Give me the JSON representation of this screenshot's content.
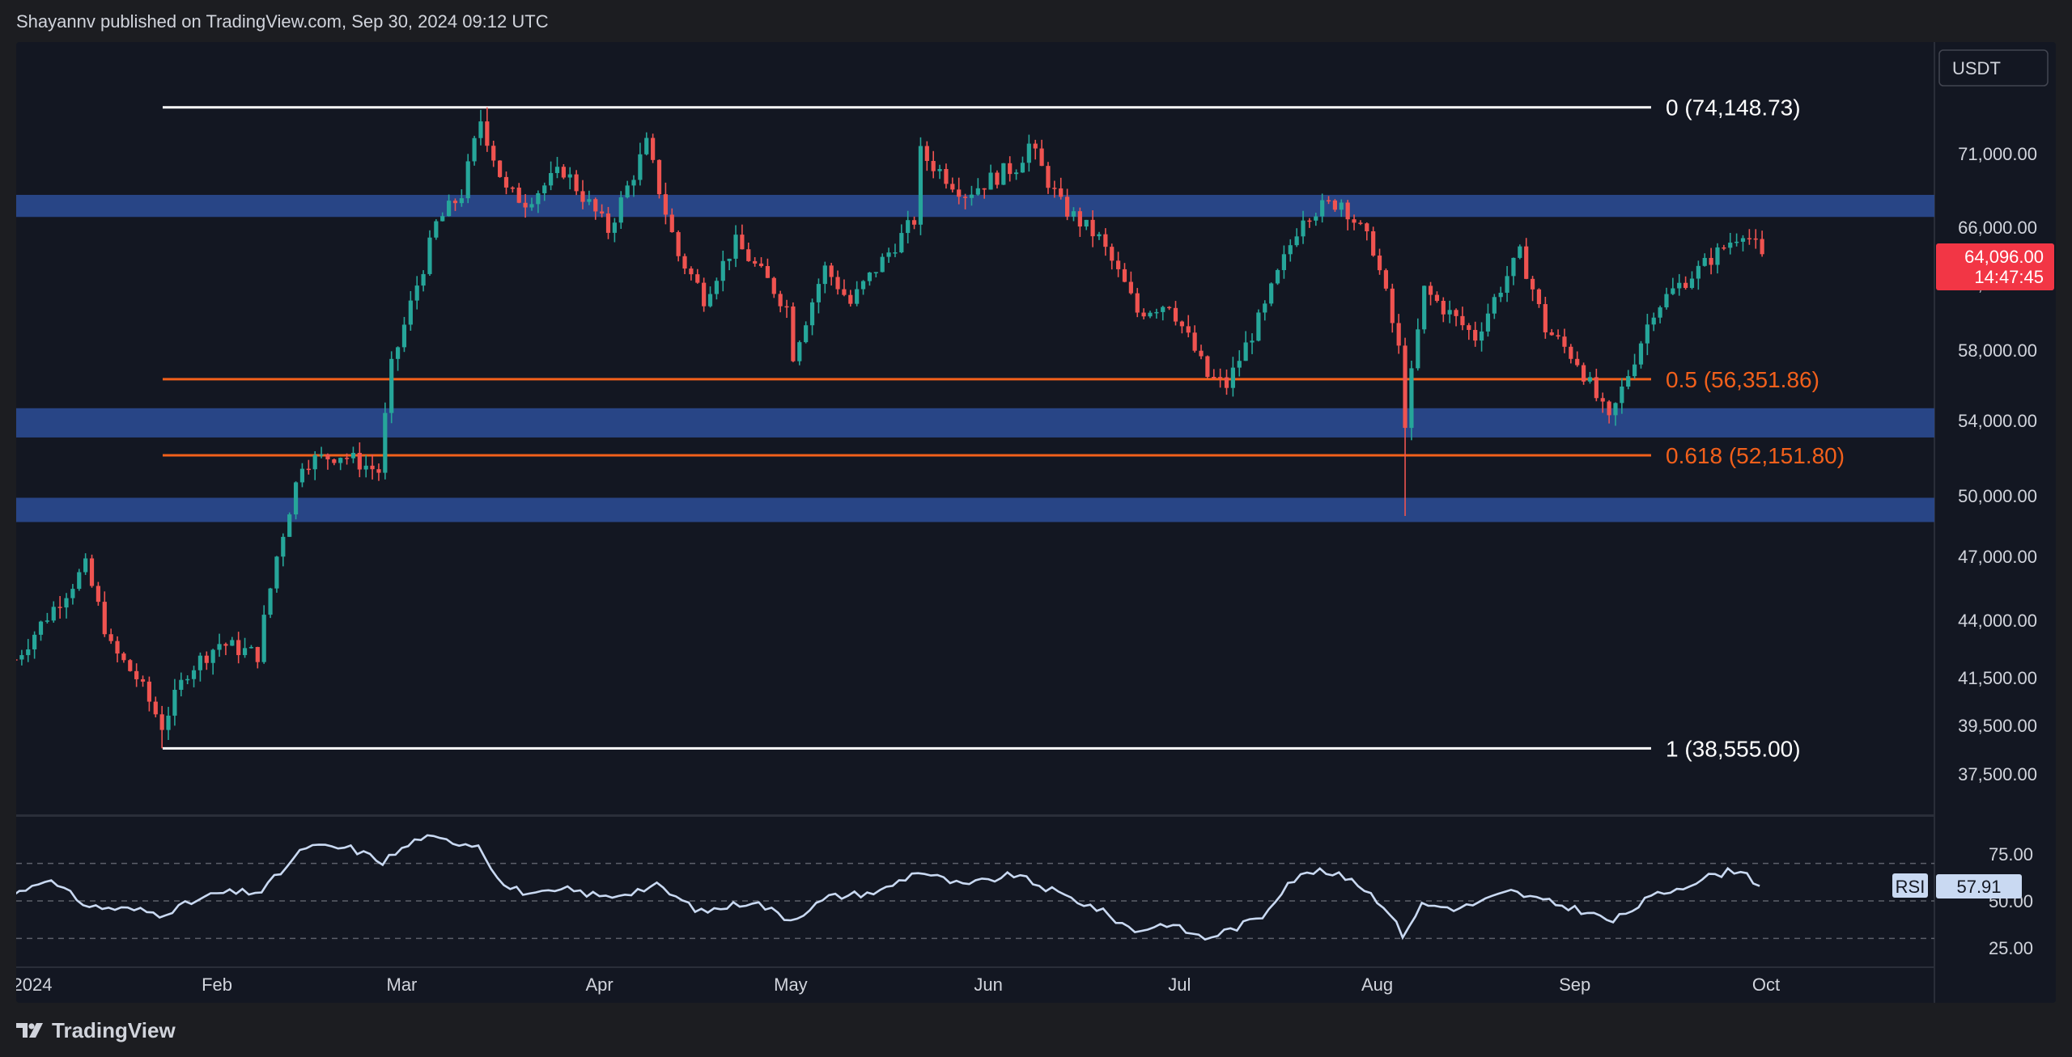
{
  "header": {
    "publisher_line": "Shayannv published on TradingView.com, Sep 30, 2024 09:12 UTC"
  },
  "footer": {
    "brand": "TradingView"
  },
  "toolbar": {
    "currency": "USDT"
  },
  "price_axis": {
    "ticks": [
      "71,000.00",
      "66,000.00",
      "62,000.00",
      "58,000.00",
      "54,000.00",
      "50,000.00",
      "47,000.00",
      "44,000.00",
      "41,500.00",
      "39,500.00",
      "37,500.00"
    ],
    "last_price": "64,096.00",
    "countdown": "14:47:45"
  },
  "time_axis": {
    "ticks": [
      "2024",
      "Feb",
      "Mar",
      "Apr",
      "May",
      "Jun",
      "Jul",
      "Aug",
      "Sep",
      "Oct"
    ]
  },
  "fib_levels": [
    {
      "label": "0 (74,148.73)",
      "price": 74148.73,
      "color": "#ffffff"
    },
    {
      "label": "0.5 (56,351.86)",
      "price": 56351.86,
      "color": "#f2601b"
    },
    {
      "label": "0.618 (52,151.80)",
      "price": 52151.8,
      "color": "#f2601b"
    },
    {
      "label": "1 (38,555.00)",
      "price": 38555.0,
      "color": "#ffffff"
    }
  ],
  "zones": [
    {
      "high": 68200,
      "low": 66700
    },
    {
      "high": 54700,
      "low": 53100
    },
    {
      "high": 49900,
      "low": 48700
    }
  ],
  "indicator": {
    "name": "RSI",
    "value": "57.91",
    "ticks": [
      "75.00",
      "50.00",
      "25.00"
    ],
    "upper": 70,
    "middle": 50,
    "lower": 30
  },
  "colors": {
    "up": "#26a69a",
    "down": "#ef5350",
    "zone": "#2a4a8f",
    "fib_white": "#ffffff",
    "fib_orange": "#f2601b",
    "rsi": "#c9d9f2",
    "badge_red": "#f23645"
  },
  "chart_data": {
    "type": "candlestick",
    "symbol_currency": "USDT",
    "interval": "daily",
    "x_range": [
      "2023-12-31",
      "2024-09-30"
    ],
    "y_range": [
      37000,
      75500
    ],
    "last": 64096.0,
    "rsi_last": 57.91,
    "key_points": [
      {
        "date": "2024-01-23",
        "price": 38555.0,
        "note": "swing low (fib 1)"
      },
      {
        "date": "2024-03-14",
        "price": 74148.73,
        "note": "swing high (fib 0)"
      },
      {
        "date": "2024-08-05",
        "price": 49000,
        "note": "wick low"
      },
      {
        "date": "2024-09-30",
        "price": 64096.0,
        "note": "last"
      }
    ],
    "close_path": [
      [
        "2023-12-31",
        42300
      ],
      [
        "2024-01-05",
        44200
      ],
      [
        "2024-01-11",
        46500
      ],
      [
        "2024-01-15",
        42800
      ],
      [
        "2024-01-19",
        41500
      ],
      [
        "2024-01-23",
        39500
      ],
      [
        "2024-01-27",
        41800
      ],
      [
        "2024-02-01",
        43000
      ],
      [
        "2024-02-07",
        42500
      ],
      [
        "2024-02-10",
        47000
      ],
      [
        "2024-02-14",
        51800
      ],
      [
        "2024-02-20",
        52200
      ],
      [
        "2024-02-26",
        51300
      ],
      [
        "2024-02-28",
        57000
      ],
      [
        "2024-03-04",
        63200
      ],
      [
        "2024-03-06",
        66200
      ],
      [
        "2024-03-10",
        68300
      ],
      [
        "2024-03-13",
        73300
      ],
      [
        "2024-03-17",
        68400
      ],
      [
        "2024-03-20",
        67800
      ],
      [
        "2024-03-26",
        69900
      ],
      [
        "2024-04-02",
        65800
      ],
      [
        "2024-04-08",
        71600
      ],
      [
        "2024-04-13",
        64000
      ],
      [
        "2024-04-17",
        61200
      ],
      [
        "2024-04-22",
        64900
      ],
      [
        "2024-04-30",
        60600
      ],
      [
        "2024-05-01",
        57800
      ],
      [
        "2024-05-06",
        63100
      ],
      [
        "2024-05-10",
        60800
      ],
      [
        "2024-05-20",
        66500
      ],
      [
        "2024-05-21",
        71000
      ],
      [
        "2024-05-28",
        68300
      ],
      [
        "2024-06-05",
        70200
      ],
      [
        "2024-06-07",
        71600
      ],
      [
        "2024-06-12",
        67500
      ],
      [
        "2024-06-18",
        65200
      ],
      [
        "2024-06-24",
        60300
      ],
      [
        "2024-06-29",
        60900
      ],
      [
        "2024-07-05",
        56500
      ],
      [
        "2024-07-08",
        56000
      ],
      [
        "2024-07-14",
        60500
      ],
      [
        "2024-07-20",
        66900
      ],
      [
        "2024-07-26",
        67800
      ],
      [
        "2024-07-31",
        64500
      ],
      [
        "2024-08-04",
        58000
      ],
      [
        "2024-08-05",
        54000
      ],
      [
        "2024-08-08",
        61600
      ],
      [
        "2024-08-16",
        58800
      ],
      [
        "2024-08-23",
        64100
      ],
      [
        "2024-08-27",
        59300
      ],
      [
        "2024-09-01",
        57400
      ],
      [
        "2024-09-06",
        53900
      ],
      [
        "2024-09-10",
        57600
      ],
      [
        "2024-09-13",
        60500
      ],
      [
        "2024-09-20",
        63000
      ],
      [
        "2024-09-27",
        65800
      ],
      [
        "2024-09-30",
        64096
      ]
    ],
    "rsi_path": [
      [
        "2023-12-31",
        53
      ],
      [
        "2024-01-05",
        62
      ],
      [
        "2024-01-12",
        47
      ],
      [
        "2024-01-20",
        45
      ],
      [
        "2024-01-23",
        43
      ],
      [
        "2024-02-01",
        54
      ],
      [
        "2024-02-08",
        55
      ],
      [
        "2024-02-15",
        79
      ],
      [
        "2024-02-22",
        78
      ],
      [
        "2024-02-27",
        71
      ],
      [
        "2024-03-04",
        84
      ],
      [
        "2024-03-08",
        82
      ],
      [
        "2024-03-13",
        80
      ],
      [
        "2024-03-17",
        58
      ],
      [
        "2024-03-22",
        53
      ],
      [
        "2024-03-27",
        56
      ],
      [
        "2024-04-02",
        52
      ],
      [
        "2024-04-10",
        58
      ],
      [
        "2024-04-17",
        44
      ],
      [
        "2024-04-25",
        50
      ],
      [
        "2024-05-01",
        40
      ],
      [
        "2024-05-07",
        52
      ],
      [
        "2024-05-15",
        55
      ],
      [
        "2024-05-21",
        66
      ],
      [
        "2024-05-28",
        58
      ],
      [
        "2024-06-05",
        64
      ],
      [
        "2024-06-12",
        54
      ],
      [
        "2024-06-18",
        46
      ],
      [
        "2024-06-24",
        34
      ],
      [
        "2024-06-29",
        38
      ],
      [
        "2024-07-05",
        30
      ],
      [
        "2024-07-10",
        36
      ],
      [
        "2024-07-14",
        42
      ],
      [
        "2024-07-18",
        60
      ],
      [
        "2024-07-22",
        66
      ],
      [
        "2024-07-28",
        62
      ],
      [
        "2024-08-02",
        48
      ],
      [
        "2024-08-05",
        32
      ],
      [
        "2024-08-08",
        48
      ],
      [
        "2024-08-14",
        46
      ],
      [
        "2024-08-22",
        55
      ],
      [
        "2024-08-27",
        50
      ],
      [
        "2024-09-02",
        45
      ],
      [
        "2024-09-07",
        39
      ],
      [
        "2024-09-13",
        52
      ],
      [
        "2024-09-18",
        58
      ],
      [
        "2024-09-23",
        64
      ],
      [
        "2024-09-27",
        67
      ],
      [
        "2024-09-30",
        57.91
      ]
    ]
  }
}
